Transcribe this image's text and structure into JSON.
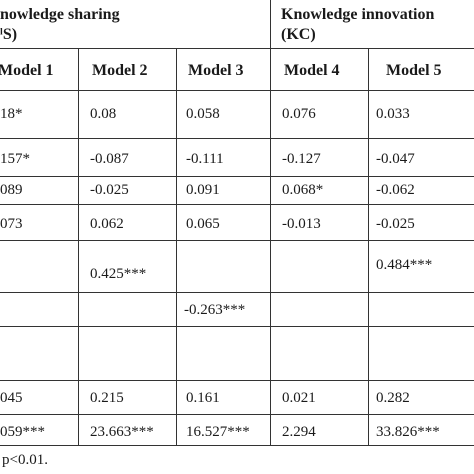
{
  "header": {
    "group1_line1": "nowledge sharing",
    "group1_line2": "ˡS)",
    "group2_line1": "Knowledge innovation",
    "group2_line2": "(KC)"
  },
  "columns": [
    "Model 1",
    "Model 2",
    "Model 3",
    "Model 4",
    "Model 5"
  ],
  "rows": [
    [
      "18*",
      "0.08",
      "0.058",
      "0.076",
      "0.033"
    ],
    [
      "157*",
      "-0.087",
      "-0.111",
      "-0.127",
      "-0.047"
    ],
    [
      "089",
      "-0.025",
      "0.091",
      "0.068*",
      "-0.062"
    ],
    [
      "073",
      "0.062",
      "0.065",
      "-0.013",
      "-0.025"
    ],
    [
      "",
      "0.425***",
      "",
      "",
      "0.484***"
    ],
    [
      "",
      "",
      "-0.263***",
      "",
      ""
    ],
    [
      "",
      "",
      "",
      "",
      ""
    ],
    [
      "045",
      "0.215",
      "0.161",
      "0.021",
      "0.282"
    ],
    [
      "059***",
      "23.663***",
      "16.527***",
      "2.294",
      "33.826***"
    ]
  ],
  "footnote": "p<0.01."
}
